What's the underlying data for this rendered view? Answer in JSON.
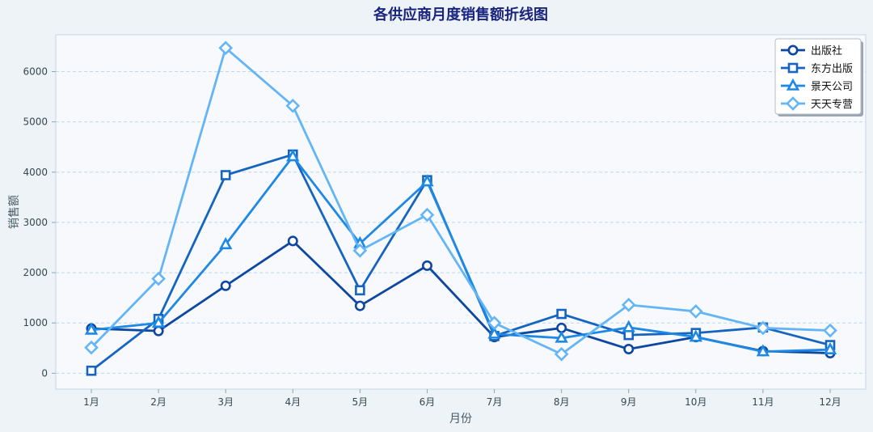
{
  "chart_data": {
    "type": "line",
    "title": "各供应商月度销售额折线图",
    "xlabel": "月份",
    "ylabel": "销售额",
    "categories": [
      "1月",
      "2月",
      "3月",
      "4月",
      "5月",
      "6月",
      "7月",
      "8月",
      "9月",
      "10月",
      "11月",
      "12月"
    ],
    "ylim": [
      -300,
      6700
    ],
    "yticks": [
      0,
      1000,
      2000,
      3000,
      4000,
      5000,
      6000
    ],
    "grid": true,
    "legend_position": "top-right",
    "series": [
      {
        "name": "出版社",
        "marker": "circle",
        "color": "#0d47a1",
        "values": [
          890,
          840,
          1740,
          2630,
          1340,
          2140,
          720,
          900,
          480,
          720,
          440,
          400
        ]
      },
      {
        "name": "东方出版",
        "marker": "square",
        "color": "#1565c0",
        "values": [
          50,
          1080,
          3940,
          4350,
          1650,
          3840,
          740,
          1180,
          760,
          800,
          910,
          560
        ]
      },
      {
        "name": "景天公司",
        "marker": "triangle",
        "color": "#1e88e5",
        "values": [
          860,
          1000,
          2560,
          4310,
          2580,
          3810,
          780,
          700,
          910,
          720,
          430,
          470
        ]
      },
      {
        "name": "天天专营",
        "marker": "diamond",
        "color": "#64b5f6",
        "values": [
          510,
          1880,
          6470,
          5320,
          2440,
          3150,
          1000,
          380,
          1360,
          1230,
          900,
          850
        ]
      }
    ]
  }
}
